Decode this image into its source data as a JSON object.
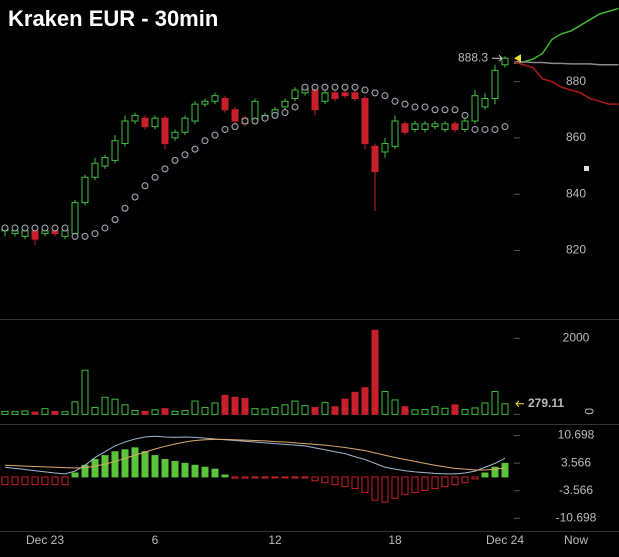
{
  "chart_data": [
    {
      "type": "candlestick",
      "title": "Kraken EUR - 30min",
      "categories": [
        null,
        null,
        null,
        null,
        "Dec 23",
        null,
        null,
        null,
        null,
        null,
        null,
        null,
        null,
        null,
        null,
        "6",
        null,
        null,
        null,
        null,
        null,
        null,
        null,
        null,
        null,
        null,
        null,
        "12",
        null,
        null,
        null,
        null,
        null,
        null,
        null,
        null,
        null,
        null,
        null,
        "18",
        null,
        null,
        null,
        null,
        null,
        null,
        null,
        null,
        null,
        null,
        "Dec 24"
      ],
      "open": [
        827,
        826,
        825,
        827,
        826,
        827,
        825,
        826,
        837,
        846,
        850,
        852,
        858,
        866,
        867,
        864,
        867,
        860,
        862,
        866,
        872,
        873,
        874,
        870,
        867,
        866,
        867,
        868,
        871,
        874,
        876,
        877,
        873,
        876,
        876,
        876,
        874,
        857,
        855,
        857,
        865,
        863,
        863,
        864,
        863,
        865,
        863,
        866,
        871,
        874,
        886
      ],
      "high": [
        829,
        828,
        828,
        828,
        828,
        828,
        828,
        838,
        847,
        853,
        854,
        861,
        868,
        869,
        868,
        868,
        868,
        863,
        868,
        873,
        874,
        876,
        875,
        871,
        868,
        874,
        869,
        871,
        874,
        878,
        879,
        878,
        877,
        877,
        877,
        877,
        875,
        858,
        860,
        868,
        866,
        866,
        866,
        866,
        866,
        866,
        867,
        877,
        876,
        886,
        889
      ],
      "low": [
        825,
        825,
        824,
        822,
        825,
        825,
        824,
        825,
        836,
        845,
        849,
        851,
        857,
        865,
        863,
        863,
        856,
        859,
        861,
        865,
        871,
        872,
        869,
        865,
        864,
        865,
        866,
        867,
        870,
        873,
        875,
        868,
        872,
        873,
        874,
        873,
        856,
        834,
        853,
        856,
        861,
        862,
        862,
        863,
        862,
        862,
        862,
        865,
        870,
        872,
        885
      ],
      "close": [
        828,
        827,
        827,
        824,
        827,
        826,
        827,
        837,
        846,
        851,
        853,
        859,
        866,
        868,
        864,
        867,
        858,
        862,
        867,
        872,
        873,
        875,
        870,
        866,
        865,
        873,
        868,
        870,
        873,
        877,
        878,
        870,
        876,
        874,
        875,
        874,
        858,
        848,
        858,
        866,
        862,
        865,
        865,
        865,
        865,
        863,
        866,
        875,
        874,
        884,
        888.3
      ],
      "up_color": "#3fbf3f",
      "down_color": "#c8202a",
      "sar": {
        "color": "#a9b0bb",
        "values": [
          828,
          828,
          828,
          828,
          828,
          828,
          828,
          825,
          825,
          826,
          828,
          831,
          835,
          839,
          843,
          846,
          849,
          852,
          854,
          856,
          859,
          861,
          863,
          864,
          866,
          866,
          867,
          868,
          869,
          871,
          878,
          878,
          878,
          878,
          878,
          878,
          877,
          876,
          875,
          873,
          872,
          871,
          871,
          870,
          870,
          870,
          868,
          863,
          863,
          863,
          864
        ]
      },
      "overlays": [
        {
          "color": "#3cb82c",
          "values": [
            886.5,
            887,
            888,
            890,
            895,
            897,
            898,
            900,
            902,
            904,
            905,
            906
          ]
        },
        {
          "color": "#8a8a8a",
          "values": [
            887,
            887,
            886.8,
            886.8,
            886.5,
            886.5,
            886.3,
            886.3,
            886.3,
            886,
            886,
            886
          ]
        },
        {
          "color": "#b01818",
          "values": [
            887,
            886,
            885,
            881,
            880,
            878,
            877,
            876,
            874,
            873,
            872,
            872
          ]
        }
      ],
      "last_price": 888.3,
      "ylim": [
        796,
        909
      ],
      "yticks": [
        820,
        840,
        860,
        880
      ]
    },
    {
      "type": "bar",
      "values": [
        80,
        70,
        90,
        60,
        150,
        80,
        70,
        330,
        1160,
        180,
        450,
        400,
        250,
        100,
        80,
        120,
        150,
        80,
        100,
        350,
        180,
        300,
        500,
        450,
        420,
        150,
        140,
        180,
        250,
        350,
        230,
        180,
        310,
        200,
        400,
        580,
        700,
        2210,
        600,
        380,
        200,
        120,
        130,
        200,
        160,
        250,
        130,
        170,
        300,
        600,
        279.11
      ],
      "ylim": [
        -200,
        2480
      ],
      "yticks": [
        0,
        2000
      ]
    },
    {
      "type": "macd",
      "histogram": {
        "up_color": "#5cc43a",
        "down_color": "#c8202a",
        "values": [
          -2,
          -2,
          -2,
          -2,
          -2,
          -2,
          -2,
          1,
          3,
          4.5,
          5.5,
          6.5,
          7,
          7.5,
          6.5,
          5.5,
          4.5,
          4,
          3.5,
          3,
          2.5,
          2,
          0.5,
          -0.3,
          -0.3,
          -0.2,
          -0.2,
          -0.2,
          -0.2,
          -0.2,
          -0.2,
          -1,
          -1.5,
          -2,
          -2.5,
          -3,
          -4,
          -6,
          -6.5,
          -5.5,
          -4.5,
          -4,
          -3.5,
          -3,
          -2.5,
          -2,
          -1.5,
          -0.5,
          1,
          2.5,
          3.5
        ]
      },
      "series": [
        {
          "color": "#9fb6cf",
          "values": [
            2.5,
            2.2,
            1.9,
            1.6,
            1.3,
            1,
            0.8,
            1.5,
            3,
            5,
            6.5,
            8,
            9,
            9.8,
            10.3,
            10.5,
            10.3,
            10.2,
            10.3,
            10.2,
            10,
            9.8,
            9.6,
            9.4,
            9.2,
            9,
            8.8,
            8.6,
            8.4,
            8.2,
            8,
            7.5,
            7,
            6.5,
            6,
            5.2,
            4.5,
            3.5,
            2.5,
            2,
            1.6,
            1.3,
            1.1,
            0.9,
            0.8,
            0.8,
            1,
            1.5,
            2.5,
            3.5,
            4.8
          ]
        },
        {
          "color": "#e0a86a",
          "values": [
            3,
            2.9,
            2.8,
            2.7,
            2.6,
            2.5,
            2.4,
            2.3,
            2.4,
            2.8,
            3.3,
            4,
            4.8,
            5.6,
            6.4,
            7.2,
            7.9,
            8.5,
            9,
            9.4,
            9.6,
            9.7,
            9.7,
            9.6,
            9.5,
            9.4,
            9.3,
            9.1,
            9,
            8.8,
            8.6,
            8.4,
            8.2,
            7.9,
            7.6,
            7.2,
            6.8,
            6.2,
            5.6,
            5,
            4.5,
            4,
            3.5,
            3,
            2.6,
            2.2,
            2,
            1.8,
            1.8,
            2,
            2.3
          ]
        }
      ],
      "now_label": "Now",
      "ylim": [
        -13.7,
        13.4
      ],
      "yticks": [
        10.698,
        3.566,
        -3.566,
        -10.698
      ]
    }
  ]
}
